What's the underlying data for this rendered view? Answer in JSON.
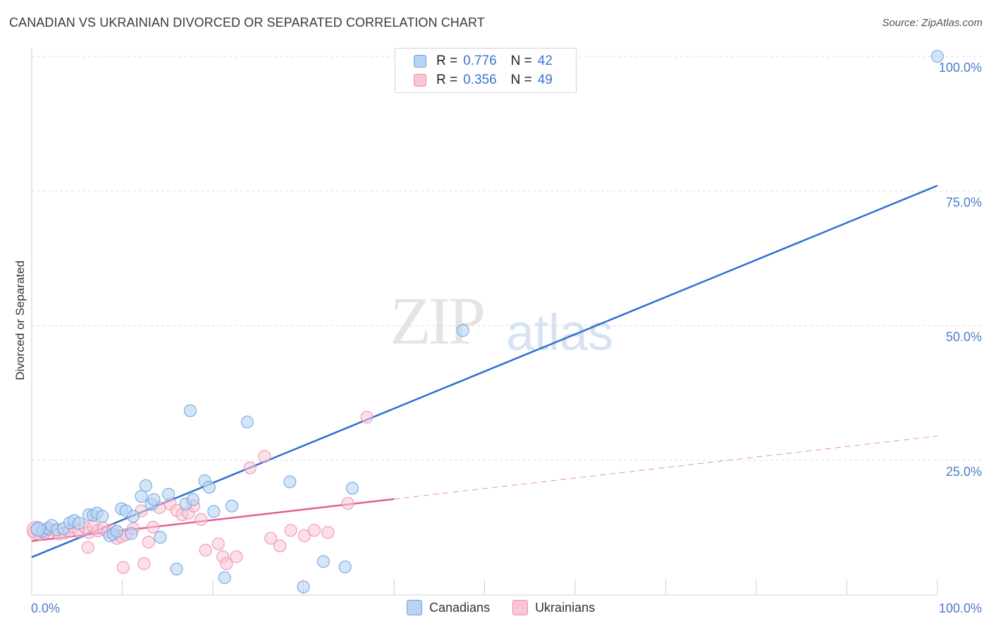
{
  "header": {
    "title": "CANADIAN VS UKRAINIAN DIVORCED OR SEPARATED CORRELATION CHART",
    "source": "Source: ZipAtlas.com"
  },
  "watermark": {
    "zip": "ZIP",
    "atlas": "atlas"
  },
  "legend": {
    "r_label": "R =",
    "n_label": "N =",
    "rows": [
      {
        "r": "0.776",
        "n": "42"
      },
      {
        "r": "0.356",
        "n": "49"
      }
    ]
  },
  "colors": {
    "blue_fill": "#b8d3f3",
    "blue_stroke": "#6ea1df",
    "blue_line": "#2f6fd0",
    "pink_fill": "#f9c6d6",
    "pink_stroke": "#ec8fae",
    "pink_line": "#e0608e",
    "grid": "#dddddd",
    "axis_text": "#4a7cc9"
  },
  "chart_data": {
    "type": "scatter",
    "title": "CANADIAN VS UKRAINIAN DIVORCED OR SEPARATED CORRELATION CHART",
    "xlabel": "",
    "ylabel": "Divorced or Separated",
    "xlim": [
      0,
      100
    ],
    "ylim": [
      0,
      100
    ],
    "x_tick_labels": [
      "0.0%",
      "100.0%"
    ],
    "y_ticks": [
      {
        "value": 25,
        "label": "25.0%"
      },
      {
        "value": 50,
        "label": "50.0%"
      },
      {
        "value": 75,
        "label": "75.0%"
      },
      {
        "value": 100,
        "label": "100.0%"
      }
    ],
    "legend_position": "top-center",
    "series": [
      {
        "name": "Canadians",
        "r": 0.776,
        "n": 42,
        "trend": {
          "x": [
            0,
            100
          ],
          "y": [
            7.0,
            76.0
          ],
          "dashed_after": null
        },
        "points": [
          [
            0.6,
            12.2
          ],
          [
            1.2,
            11.8
          ],
          [
            1.8,
            12.4
          ],
          [
            2.2,
            12.9
          ],
          [
            2.8,
            12.1
          ],
          [
            3.5,
            12.3
          ],
          [
            4.2,
            13.4
          ],
          [
            4.7,
            13.8
          ],
          [
            5.2,
            13.3
          ],
          [
            6.3,
            14.9
          ],
          [
            6.8,
            14.8
          ],
          [
            7.2,
            15.2
          ],
          [
            7.8,
            14.6
          ],
          [
            8.6,
            11.0
          ],
          [
            9.0,
            11.3
          ],
          [
            9.4,
            11.8
          ],
          [
            9.9,
            16.0
          ],
          [
            10.4,
            15.6
          ],
          [
            11.0,
            11.4
          ],
          [
            11.2,
            14.6
          ],
          [
            12.1,
            18.3
          ],
          [
            12.6,
            20.3
          ],
          [
            13.2,
            16.8
          ],
          [
            13.5,
            17.7
          ],
          [
            14.2,
            10.7
          ],
          [
            15.1,
            18.7
          ],
          [
            16.0,
            4.8
          ],
          [
            17.0,
            16.9
          ],
          [
            17.8,
            17.7
          ],
          [
            19.1,
            21.2
          ],
          [
            17.5,
            34.2
          ],
          [
            19.6,
            20.0
          ],
          [
            20.1,
            15.5
          ],
          [
            22.1,
            16.5
          ],
          [
            21.3,
            3.2
          ],
          [
            23.8,
            32.1
          ],
          [
            28.5,
            21.0
          ],
          [
            30.0,
            1.5
          ],
          [
            32.2,
            6.2
          ],
          [
            34.6,
            5.2
          ],
          [
            35.4,
            19.8
          ],
          [
            47.6,
            49.1
          ],
          [
            100.0,
            100.0
          ]
        ]
      },
      {
        "name": "Ukrainians",
        "r": 0.356,
        "n": 49,
        "trend": {
          "x": [
            0,
            100
          ],
          "y": [
            10.0,
            29.5
          ],
          "dashed_after": 40
        },
        "points": [
          [
            0.3,
            11.8
          ],
          [
            0.9,
            11.2
          ],
          [
            1.4,
            11.5
          ],
          [
            1.9,
            12.1
          ],
          [
            2.4,
            12.0
          ],
          [
            3.0,
            11.3
          ],
          [
            3.6,
            11.5
          ],
          [
            4.2,
            11.9
          ],
          [
            4.6,
            12.6
          ],
          [
            5.2,
            11.8
          ],
          [
            5.9,
            12.5
          ],
          [
            6.3,
            11.6
          ],
          [
            6.8,
            12.7
          ],
          [
            7.3,
            11.9
          ],
          [
            7.9,
            12.4
          ],
          [
            8.4,
            11.7
          ],
          [
            9.0,
            12.0
          ],
          [
            9.4,
            10.5
          ],
          [
            9.9,
            10.8
          ],
          [
            10.4,
            11.2
          ],
          [
            11.2,
            12.3
          ],
          [
            12.1,
            15.6
          ],
          [
            12.9,
            9.8
          ],
          [
            13.4,
            12.6
          ],
          [
            14.1,
            16.2
          ],
          [
            15.3,
            16.9
          ],
          [
            16.0,
            15.7
          ],
          [
            16.6,
            14.9
          ],
          [
            17.3,
            15.2
          ],
          [
            17.9,
            16.5
          ],
          [
            18.7,
            14.0
          ],
          [
            19.2,
            8.3
          ],
          [
            20.6,
            9.5
          ],
          [
            21.1,
            7.1
          ],
          [
            21.5,
            5.8
          ],
          [
            22.6,
            7.1
          ],
          [
            24.1,
            23.6
          ],
          [
            25.7,
            25.7
          ],
          [
            26.4,
            10.5
          ],
          [
            27.4,
            9.1
          ],
          [
            28.6,
            12.0
          ],
          [
            30.1,
            11.0
          ],
          [
            31.2,
            12.0
          ],
          [
            32.7,
            11.6
          ],
          [
            34.9,
            17.0
          ],
          [
            37.0,
            33.0
          ],
          [
            6.2,
            8.8
          ],
          [
            10.1,
            5.1
          ],
          [
            12.4,
            5.8
          ]
        ]
      }
    ]
  }
}
